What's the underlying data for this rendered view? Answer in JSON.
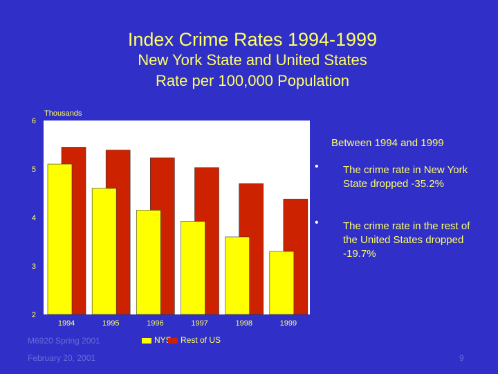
{
  "title": "Index Crime Rates 1994-1999",
  "subtitle_line1": "New York State and United States",
  "subtitle_line2": "Rate per 100,000 Population",
  "notes": {
    "heading": "Between 1994 and 1999",
    "bullets": [
      "The crime rate in New York State dropped -35.2%",
      "The crime rate in the rest of the United States dropped -19.7%"
    ]
  },
  "footer": {
    "course": "M6920 Spring 2001",
    "date": "February 20, 2001",
    "page": "9"
  },
  "colors": {
    "background": "#3030c8",
    "text": "#ffff66",
    "nys": "#ffff00",
    "rest_of_us": "#cc2200",
    "plot_area": "#ffffff"
  },
  "chart_data": {
    "type": "bar",
    "ylabel": "Thousands",
    "ylim": [
      2,
      6
    ],
    "yticks": [
      "2",
      "3",
      "4",
      "5",
      "6"
    ],
    "categories": [
      "1994",
      "1995",
      "1996",
      "1997",
      "1998",
      "1999"
    ],
    "series": [
      {
        "name": "NYS",
        "values": [
          5.1,
          4.6,
          4.15,
          3.92,
          3.6,
          3.3
        ]
      },
      {
        "name": "Rest of US",
        "values": [
          5.45,
          5.39,
          5.23,
          5.03,
          4.7,
          4.38
        ]
      }
    ],
    "grid": false,
    "legend": "bottom"
  }
}
